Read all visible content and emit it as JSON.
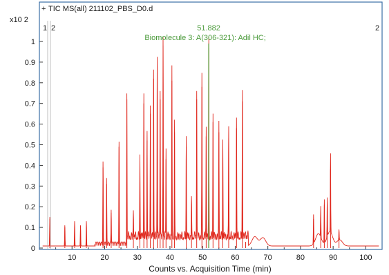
{
  "chart_data": {
    "type": "line",
    "title": "TIC MS(all) 211102_PBS_D0.d",
    "title_marker": "+",
    "y_scale_label": "x10 2",
    "xlabel": "Counts vs. Acquisition Time (min)",
    "ylabel": "",
    "xlim": [
      0,
      105
    ],
    "ylim": [
      0,
      1.05
    ],
    "x_ticks": [
      10,
      20,
      30,
      40,
      50,
      60,
      70,
      80,
      90,
      100
    ],
    "y_ticks": [
      0,
      0.1,
      0.2,
      0.3,
      0.4,
      0.5,
      0.6,
      0.7,
      0.8,
      0.9,
      1
    ],
    "grid": false,
    "colors": {
      "trace": "#e0281e",
      "marker": "#6aa84f",
      "annotation": "#4a9a3a",
      "frame": "#3a6ea5"
    },
    "corner_labels": {
      "left": "1",
      "left2": "2",
      "right": "2"
    },
    "annotation": {
      "x": 51.882,
      "value_text": "51.882",
      "label": "Biomolecule 3: A(306-321): Adil HC;"
    },
    "series": [
      {
        "peaks": [
          {
            "x": 3.2,
            "y": 0.14
          },
          {
            "x": 7.8,
            "y": 0.1
          },
          {
            "x": 10.8,
            "y": 0.12
          },
          {
            "x": 12.6,
            "y": 0.1
          },
          {
            "x": 14.4,
            "y": 0.12
          },
          {
            "x": 19.5,
            "y": 0.39
          },
          {
            "x": 20.6,
            "y": 0.31
          },
          {
            "x": 22.0,
            "y": 0.17
          },
          {
            "x": 24.4,
            "y": 0.49
          },
          {
            "x": 26.8,
            "y": 0.72
          },
          {
            "x": 28.8,
            "y": 0.14
          },
          {
            "x": 30.8,
            "y": 0.4
          },
          {
            "x": 32.0,
            "y": 0.7
          },
          {
            "x": 33.0,
            "y": 0.52
          },
          {
            "x": 34.0,
            "y": 0.65
          },
          {
            "x": 35.0,
            "y": 0.82
          },
          {
            "x": 36.1,
            "y": 0.88
          },
          {
            "x": 37.0,
            "y": 0.72
          },
          {
            "x": 37.9,
            "y": 0.98
          },
          {
            "x": 38.8,
            "y": 0.43
          },
          {
            "x": 40.6,
            "y": 0.81
          },
          {
            "x": 41.4,
            "y": 0.56
          },
          {
            "x": 45.0,
            "y": 0.49
          },
          {
            "x": 46.6,
            "y": 0.18
          },
          {
            "x": 48.2,
            "y": 0.72
          },
          {
            "x": 49.8,
            "y": 0.78
          },
          {
            "x": 51.1,
            "y": 0.54
          },
          {
            "x": 51.9,
            "y": 0.97
          },
          {
            "x": 53.2,
            "y": 0.61
          },
          {
            "x": 55.0,
            "y": 0.56
          },
          {
            "x": 56.2,
            "y": 0.48
          },
          {
            "x": 58.0,
            "y": 0.53
          },
          {
            "x": 60.4,
            "y": 0.58
          },
          {
            "x": 62.2,
            "y": 0.71
          },
          {
            "x": 63.2,
            "y": 0.03
          },
          {
            "x": 84.0,
            "y": 0.14
          },
          {
            "x": 86.2,
            "y": 0.15
          },
          {
            "x": 87.3,
            "y": 0.21
          },
          {
            "x": 88.2,
            "y": 0.19
          },
          {
            "x": 89.2,
            "y": 0.38
          },
          {
            "x": 91.8,
            "y": 0.05
          }
        ],
        "humps": [
          {
            "x": 66.0,
            "y": 0.045
          },
          {
            "x": 68.5,
            "y": 0.04
          },
          {
            "x": 85.5,
            "y": 0.06
          },
          {
            "x": 89.0,
            "y": 0.07
          },
          {
            "x": 92.0,
            "y": 0.03
          }
        ]
      }
    ]
  }
}
